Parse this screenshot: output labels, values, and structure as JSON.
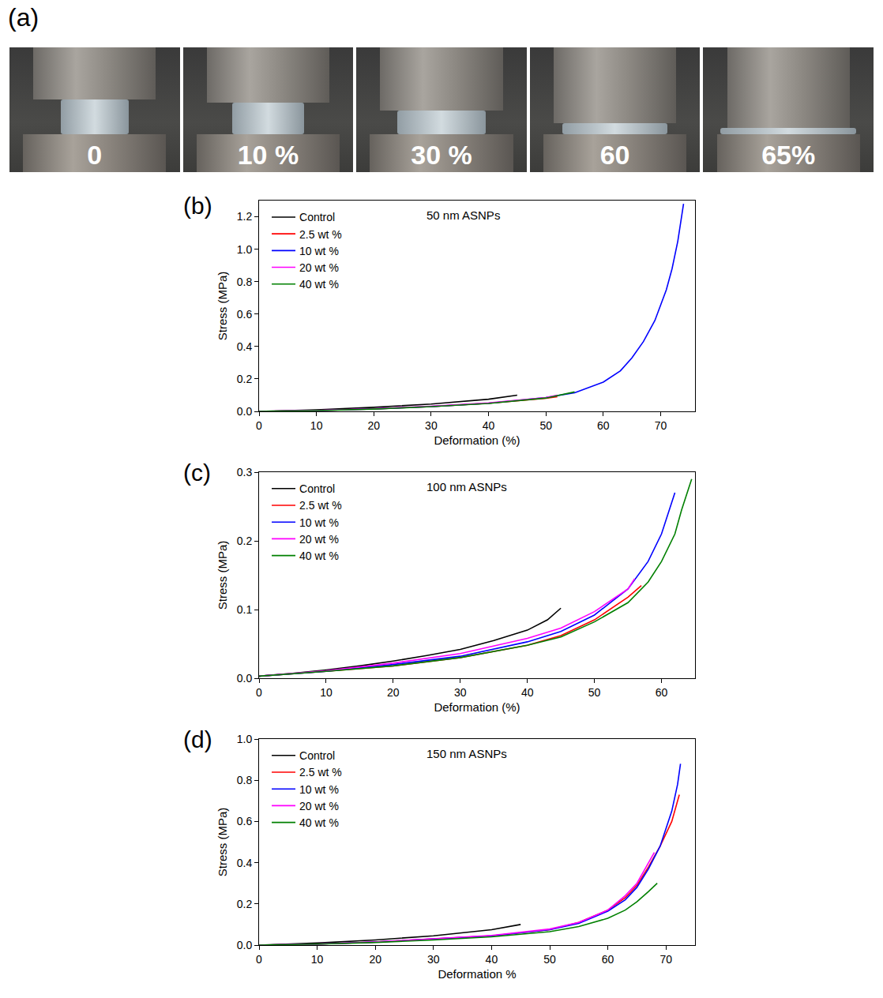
{
  "panel_a": {
    "label": "(a)",
    "frames": [
      "0",
      "10 %",
      "30 %",
      "60",
      "65%"
    ]
  },
  "chart_data": [
    {
      "type": "line",
      "panel": "(b)",
      "annotation": "50 nm ASNPs",
      "x_label": "Deformation (%)",
      "y_label": "Stress (MPa)",
      "xlim": [
        0,
        76
      ],
      "xticks": [
        0,
        10,
        20,
        30,
        40,
        50,
        60,
        70
      ],
      "ylim": [
        0,
        1.3
      ],
      "yticks": [
        {
          "value": 0,
          "label": "0.0"
        },
        0.2,
        0.4,
        0.6,
        0.8,
        {
          "value": 1,
          "label": "1.0"
        },
        1.2
      ],
      "legend": "top-left",
      "grid": false,
      "series": [
        {
          "name": "Control",
          "color": "#000000",
          "x": [
            0,
            10,
            20,
            30,
            40,
            45
          ],
          "values": [
            0,
            0.01,
            0.025,
            0.045,
            0.075,
            0.1
          ]
        },
        {
          "name": "2.5 wt %",
          "color": "#ff0000",
          "x": [
            0,
            10,
            20,
            30,
            40,
            50,
            52
          ],
          "values": [
            0,
            0.005,
            0.015,
            0.03,
            0.05,
            0.08,
            0.09
          ]
        },
        {
          "name": "10 wt %",
          "color": "#0000ff",
          "x": [
            0,
            10,
            20,
            30,
            40,
            50,
            55,
            60,
            63,
            65,
            67,
            69,
            71,
            72,
            73,
            74
          ],
          "values": [
            0,
            0.005,
            0.015,
            0.03,
            0.05,
            0.085,
            0.115,
            0.18,
            0.25,
            0.33,
            0.43,
            0.56,
            0.75,
            0.88,
            1.05,
            1.28
          ]
        },
        {
          "name": "20 wt %",
          "color": "#ff00ff",
          "x": [
            0,
            10,
            20,
            30,
            40,
            50,
            52
          ],
          "values": [
            0,
            0.006,
            0.016,
            0.032,
            0.052,
            0.085,
            0.1
          ]
        },
        {
          "name": "40 wt %",
          "color": "#008000",
          "x": [
            0,
            10,
            20,
            30,
            40,
            50,
            55
          ],
          "values": [
            0,
            0.005,
            0.014,
            0.029,
            0.049,
            0.082,
            0.12
          ]
        }
      ]
    },
    {
      "type": "line",
      "panel": "(c)",
      "annotation": "100 nm ASNPs",
      "x_label": "Deformation (%)",
      "y_label": "Stress (MPa)",
      "xlim": [
        0,
        65
      ],
      "xticks": [
        0,
        10,
        20,
        30,
        40,
        50,
        60
      ],
      "ylim": [
        0,
        0.3
      ],
      "yticks": [
        {
          "value": 0,
          "label": "0.0"
        },
        0.1,
        0.2,
        0.3
      ],
      "legend": "top-left",
      "grid": false,
      "series": [
        {
          "name": "Control",
          "color": "#000000",
          "x": [
            0,
            5,
            10,
            15,
            20,
            25,
            30,
            35,
            40,
            43,
            45
          ],
          "values": [
            0.003,
            0.007,
            0.012,
            0.018,
            0.025,
            0.033,
            0.042,
            0.055,
            0.07,
            0.085,
            0.102
          ]
        },
        {
          "name": "2.5 wt %",
          "color": "#ff0000",
          "x": [
            0,
            10,
            20,
            30,
            40,
            45,
            50,
            55,
            57
          ],
          "values": [
            0.003,
            0.01,
            0.018,
            0.03,
            0.048,
            0.062,
            0.085,
            0.118,
            0.135
          ]
        },
        {
          "name": "10 wt %",
          "color": "#0000ff",
          "x": [
            0,
            10,
            20,
            30,
            40,
            45,
            50,
            55,
            58,
            60,
            62
          ],
          "values": [
            0.003,
            0.01,
            0.02,
            0.032,
            0.053,
            0.068,
            0.092,
            0.13,
            0.17,
            0.21,
            0.27
          ]
        },
        {
          "name": "20 wt %",
          "color": "#ff00ff",
          "x": [
            0,
            10,
            20,
            30,
            40,
            45,
            50,
            55,
            56
          ],
          "values": [
            0.003,
            0.011,
            0.022,
            0.036,
            0.058,
            0.073,
            0.097,
            0.13,
            0.145
          ]
        },
        {
          "name": "40 wt %",
          "color": "#008000",
          "x": [
            0,
            10,
            20,
            30,
            40,
            45,
            50,
            55,
            58,
            60,
            62,
            63,
            64.5
          ],
          "values": [
            0.003,
            0.01,
            0.018,
            0.03,
            0.048,
            0.06,
            0.082,
            0.11,
            0.14,
            0.17,
            0.21,
            0.245,
            0.29
          ]
        }
      ]
    },
    {
      "type": "line",
      "panel": "(d)",
      "annotation": "150 nm ASNPs",
      "x_label": "Deformation %",
      "y_label": "Stress (MPa)",
      "xlim": [
        0,
        75
      ],
      "xticks": [
        0,
        10,
        20,
        30,
        40,
        50,
        60,
        70
      ],
      "ylim": [
        0,
        1
      ],
      "yticks": [
        {
          "value": 0,
          "label": "0.0"
        },
        0.2,
        0.4,
        0.6,
        0.8,
        {
          "value": 1,
          "label": "1.0"
        }
      ],
      "legend": "top-left",
      "grid": false,
      "series": [
        {
          "name": "Control",
          "color": "#000000",
          "x": [
            0,
            10,
            20,
            30,
            40,
            45
          ],
          "values": [
            0,
            0.01,
            0.025,
            0.045,
            0.075,
            0.1
          ]
        },
        {
          "name": "2.5 wt %",
          "color": "#ff0000",
          "x": [
            0,
            10,
            20,
            30,
            40,
            50,
            55,
            60,
            63,
            65,
            67,
            69,
            71,
            72.3
          ],
          "values": [
            0,
            0.005,
            0.015,
            0.03,
            0.045,
            0.075,
            0.11,
            0.17,
            0.23,
            0.29,
            0.38,
            0.48,
            0.6,
            0.73
          ]
        },
        {
          "name": "10 wt %",
          "color": "#0000ff",
          "x": [
            0,
            10,
            20,
            30,
            40,
            50,
            55,
            60,
            63,
            65,
            67,
            69,
            71,
            72,
            72.5
          ],
          "values": [
            0,
            0.005,
            0.015,
            0.03,
            0.045,
            0.075,
            0.105,
            0.165,
            0.22,
            0.28,
            0.37,
            0.48,
            0.65,
            0.78,
            0.88
          ]
        },
        {
          "name": "20 wt %",
          "color": "#ff00ff",
          "x": [
            0,
            10,
            20,
            30,
            40,
            50,
            55,
            60,
            63,
            65,
            67,
            68
          ],
          "values": [
            0,
            0.005,
            0.015,
            0.03,
            0.047,
            0.078,
            0.11,
            0.17,
            0.24,
            0.3,
            0.4,
            0.45
          ]
        },
        {
          "name": "40 wt %",
          "color": "#008000",
          "x": [
            0,
            10,
            20,
            30,
            40,
            50,
            55,
            60,
            63,
            65,
            67,
            68.5
          ],
          "values": [
            0,
            0.005,
            0.013,
            0.025,
            0.04,
            0.065,
            0.09,
            0.13,
            0.17,
            0.21,
            0.26,
            0.3
          ]
        }
      ]
    }
  ]
}
